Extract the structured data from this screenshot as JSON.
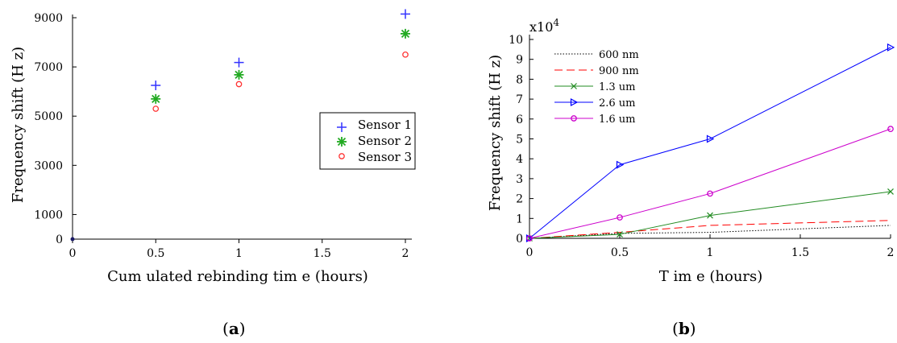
{
  "panels": {
    "a": {
      "label_open": "(",
      "label_letter": "a",
      "label_close": ")"
    },
    "b": {
      "label_open": "(",
      "label_letter": "b",
      "label_close": ")"
    }
  },
  "chart_data": [
    {
      "type": "scatter",
      "xlabel": "Cum ulated rebinding tim e (hours)",
      "ylabel": "Frequency shift (H z)",
      "xlim": [
        0,
        2
      ],
      "ylim": [
        0,
        9000
      ],
      "x_ticks": [
        0,
        0.5,
        1,
        1.5,
        2
      ],
      "x_tick_labels": [
        "0",
        "0.5",
        "1",
        "1.5",
        "2"
      ],
      "y_ticks": [
        0,
        1000,
        3000,
        5000,
        7000,
        9000
      ],
      "y_tick_labels": [
        "0",
        "1000",
        "3000",
        "5000",
        "7000",
        "9000"
      ],
      "legend_position": "right",
      "origin_point": [
        0,
        0
      ],
      "series": [
        {
          "name": "Sensor 1",
          "marker": "plus",
          "color": "#3333ff",
          "x": [
            0.5,
            1,
            2
          ],
          "y": [
            6250,
            7180,
            9150
          ]
        },
        {
          "name": "Sensor 2",
          "marker": "asterisk",
          "color": "#22aa22",
          "x": [
            0.5,
            1,
            2
          ],
          "y": [
            5700,
            6680,
            8350
          ]
        },
        {
          "name": "Sensor 3",
          "marker": "circle",
          "color": "#ff3333",
          "x": [
            0.5,
            1,
            2
          ],
          "y": [
            5300,
            6300,
            7500
          ]
        }
      ]
    },
    {
      "type": "line",
      "xlabel": "T im e (hours)",
      "ylabel": "Frequency shift (H z)",
      "y_multiplier_base": "x10",
      "y_multiplier_exp": "4",
      "xlim": [
        0,
        2
      ],
      "ylim": [
        0,
        10
      ],
      "x_ticks": [
        0,
        0.5,
        1,
        1.5,
        2
      ],
      "x_tick_labels": [
        "0",
        "0.5",
        "1",
        "1.5",
        "2"
      ],
      "y_ticks": [
        0,
        1,
        2,
        3,
        4,
        5,
        6,
        7,
        8,
        9,
        10
      ],
      "y_tick_labels": [
        "0",
        "1",
        "2",
        "3",
        "4",
        "5",
        "6",
        "7",
        "8",
        "9",
        "10"
      ],
      "legend_position": "top-left",
      "series": [
        {
          "name": "600 nm",
          "style": "dotted",
          "marker": "none",
          "color": "#000000",
          "x": [
            0,
            0.5,
            1,
            2
          ],
          "y": [
            0,
            0.25,
            0.3,
            0.65
          ]
        },
        {
          "name": "900 nm",
          "style": "dashed",
          "marker": "none",
          "color": "#ff0000",
          "x": [
            0,
            0.5,
            1,
            2
          ],
          "y": [
            0,
            0.3,
            0.65,
            0.9
          ]
        },
        {
          "name": "1.3 um",
          "style": "solid",
          "marker": "x",
          "color": "#228b22",
          "x": [
            0,
            0.5,
            1,
            2
          ],
          "y": [
            0,
            0.2,
            1.15,
            2.35
          ]
        },
        {
          "name": "2.6 um",
          "style": "solid",
          "marker": "triangle-right",
          "color": "#0000ff",
          "x": [
            0,
            0.5,
            1,
            2
          ],
          "y": [
            0,
            3.7,
            5.0,
            9.6
          ]
        },
        {
          "name": "1.6 um",
          "style": "solid",
          "marker": "circle",
          "color": "#cc00cc",
          "x": [
            0,
            0.5,
            1,
            2
          ],
          "y": [
            0,
            1.05,
            2.25,
            5.5
          ]
        }
      ]
    }
  ]
}
